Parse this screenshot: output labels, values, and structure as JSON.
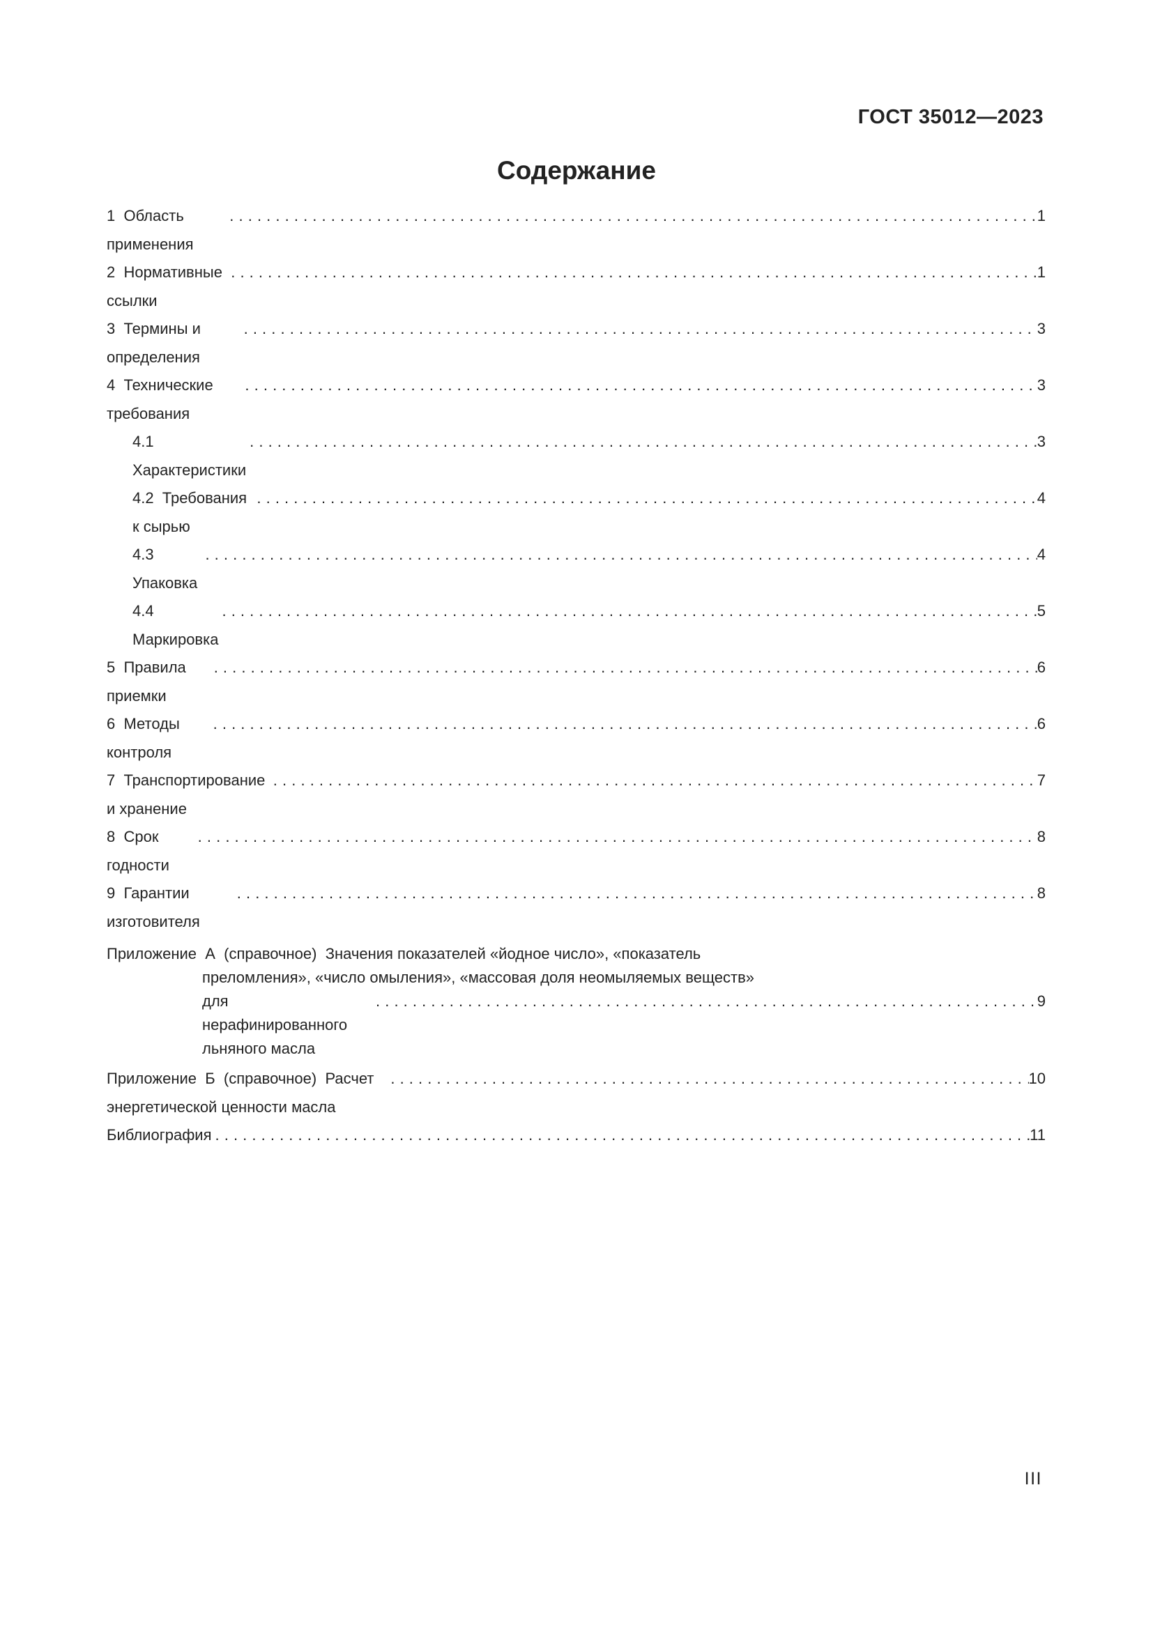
{
  "page": {
    "doc_code": "ГОСТ 35012—2023",
    "title": "Содержание",
    "folio": "III"
  },
  "toc": {
    "rows": [
      {
        "text": "1  Область применения",
        "page": "1"
      },
      {
        "text": "2  Нормативные ссылки",
        "page": "1"
      },
      {
        "text": "3  Термины и определения",
        "page": "3"
      },
      {
        "text": "4  Технические требования",
        "page": "3"
      },
      {
        "text": "4.1 Характеристики",
        "page": "3"
      },
      {
        "text": "4.2  Требования к сырью",
        "page": "4"
      },
      {
        "text": "4.3  Упаковка",
        "page": "4"
      },
      {
        "text": "4.4  Маркировка",
        "page": "5"
      },
      {
        "text": "5  Правила приемки",
        "page": "6"
      },
      {
        "text": "6  Методы контроля",
        "page": "6"
      },
      {
        "text": "7  Транспортирование и хранение",
        "page": "7"
      },
      {
        "text": "8  Срок годности",
        "page": "8"
      },
      {
        "text": "9  Гарантии изготовителя",
        "page": "8"
      }
    ],
    "appendix_a": {
      "line1": "Приложение  А  (справочное)  Значения показателей «йодное число», «показатель",
      "line2": "преломления», «число омыления», «массовая доля неомыляемых веществ»",
      "line3": "для нерафинированного льняного масла",
      "page": "9"
    },
    "appendix_b": {
      "text": "Приложение  Б  (справочное)  Расчет энергетической ценности масла",
      "page": "10"
    },
    "bibliography": {
      "text": "Библиография",
      "page": "11"
    }
  }
}
